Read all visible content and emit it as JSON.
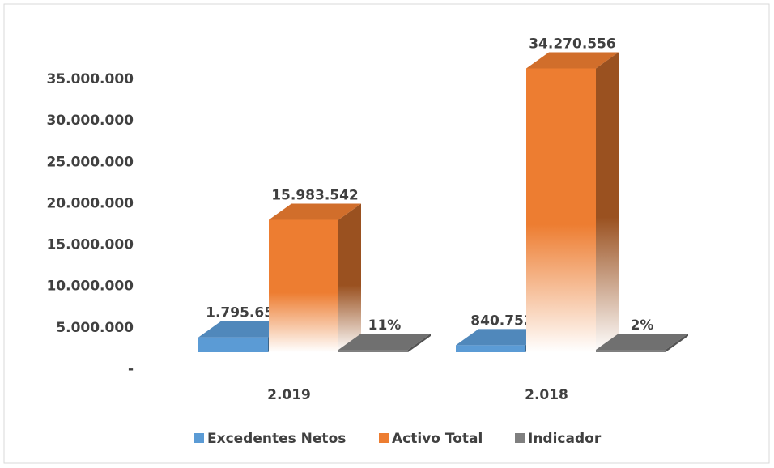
{
  "chart_data": {
    "type": "bar3d",
    "categories": [
      "2.019",
      "2.018"
    ],
    "series": [
      {
        "name": "Excedentes Netos",
        "color": "#5b9bd5",
        "values": [
          1795651,
          840752
        ],
        "value_labels": [
          "1.795.651",
          "840.752"
        ]
      },
      {
        "name": "Activo Total",
        "color": "#ed7d31",
        "values": [
          15983542,
          34270556
        ],
        "value_labels": [
          "15.983.542",
          "34.270.556"
        ]
      },
      {
        "name": "Indicador",
        "color": "#7f7f7f",
        "values": [
          11,
          2
        ],
        "value_labels": [
          "11%",
          "2%"
        ]
      }
    ],
    "ylim": [
      0,
      35000000
    ],
    "yticks": [
      {
        "value": 0,
        "label": "-"
      },
      {
        "value": 5000000,
        "label": "5.000.000"
      },
      {
        "value": 10000000,
        "label": "10.000.000"
      },
      {
        "value": 15000000,
        "label": "15.000.000"
      },
      {
        "value": 20000000,
        "label": "20.000.000"
      },
      {
        "value": 25000000,
        "label": "25.000.000"
      },
      {
        "value": 30000000,
        "label": "30.000.000"
      },
      {
        "value": 35000000,
        "label": "35.000.000"
      }
    ],
    "legend": "bottom"
  }
}
